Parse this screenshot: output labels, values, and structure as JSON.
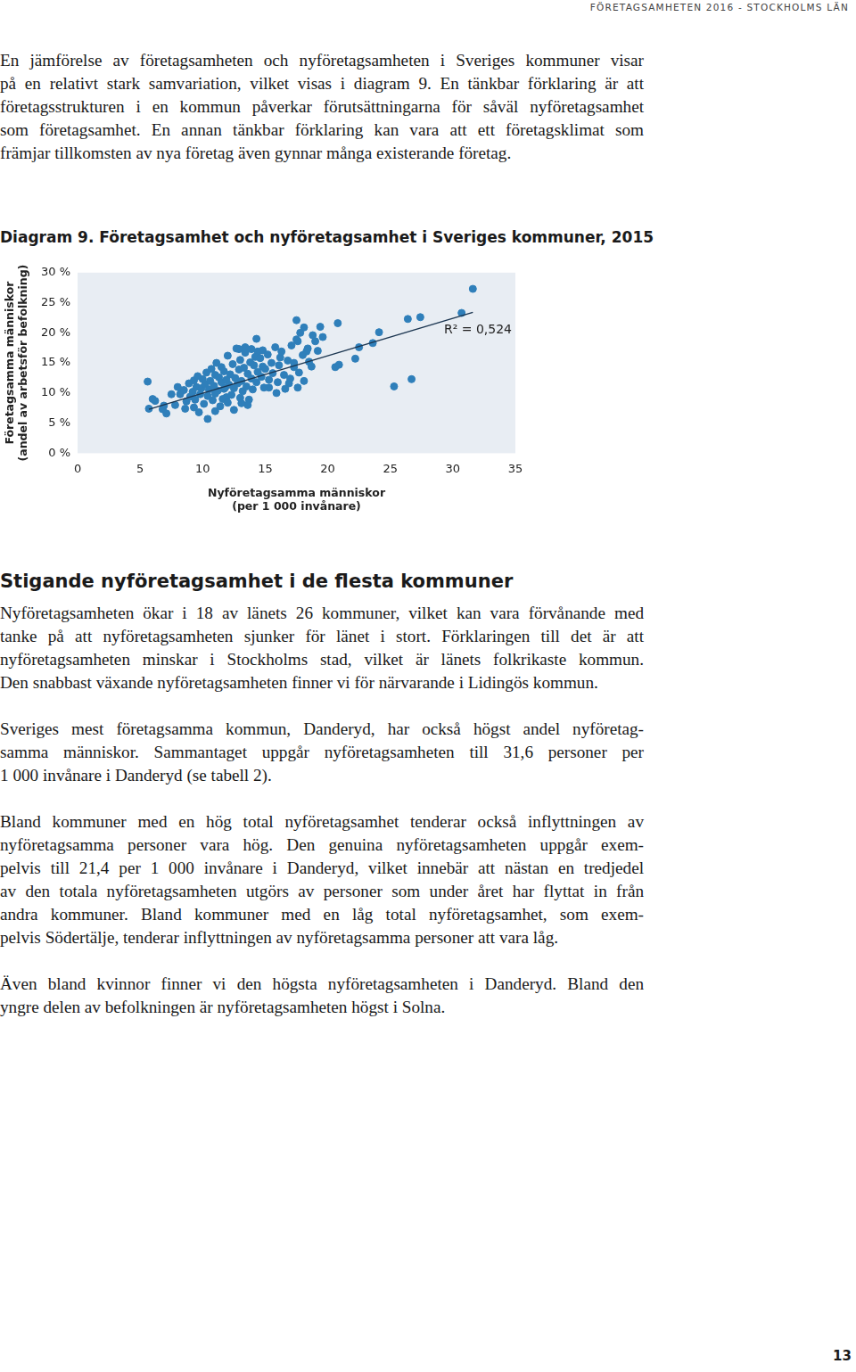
{
  "header": "FÖRETAGSAMHETEN 2016 - STOCKHOLMS LÄN",
  "intro": [
    [
      "En jämförelse av företagsamheten och nyföretagsamheten i Sveriges kommuner visar",
      "på en relativt stark samvariation, vilket visas i diagram 9. En tänkbar förklaring är att",
      "företagsstrukturen i en kommun påverkar förutsättningarna för såväl nyföretagsamhet",
      "som företagsamhet. En annan tänkbar förklaring kan vara att ett företagsklimat som",
      "främjar tillkomsten av nya företag även gynnar många existerande företag."
    ]
  ],
  "chart_data": {
    "type": "scatter",
    "title": "Diagram 9. Företagsamhet och nyföretagsamhet i Sveriges kommuner, 2015",
    "x_label": [
      "Nyföretagsamma människor",
      "(per 1 000 invånare)"
    ],
    "y_label": [
      "Företagsamma människor",
      "(andel av arbetsför befolkning)"
    ],
    "color": "#2f7fba",
    "grid": false,
    "xlim": [
      0,
      35
    ],
    "xticks": [
      0,
      5,
      10,
      15,
      20,
      25,
      30,
      35
    ],
    "ylim": [
      0,
      30
    ],
    "yticks": [
      {
        "value": 0,
        "label": "0 %"
      },
      {
        "value": 5,
        "label": "5 %"
      },
      {
        "value": 10,
        "label": "10 %"
      },
      {
        "value": 15,
        "label": "15 %"
      },
      {
        "value": 20,
        "label": "20 %"
      },
      {
        "value": 25,
        "label": "25 %"
      },
      {
        "value": 30,
        "label": "30 %"
      }
    ],
    "annotation": "R² = 0,524",
    "trend_line": {
      "color": "#1b3550",
      "x": [
        5.7,
        31.6
      ],
      "values": [
        7.3,
        23.4
      ]
    },
    "points": [
      [
        5.6,
        11.9
      ],
      [
        5.7,
        7.4
      ],
      [
        6.2,
        8.7
      ],
      [
        6.8,
        7.3
      ],
      [
        7.1,
        6.6
      ],
      [
        6.9,
        7.9
      ],
      [
        8.3,
        10.4
      ],
      [
        10.4,
        5.7
      ],
      [
        14.3,
        19.0
      ],
      [
        18.1,
        20.9
      ],
      [
        20.8,
        21.6
      ],
      [
        26.4,
        22.3
      ],
      [
        27.4,
        22.6
      ],
      [
        31.6,
        27.3
      ],
      [
        30.7,
        23.3
      ],
      [
        25.3,
        11.1
      ],
      [
        26.7,
        12.3
      ],
      [
        24.1,
        20.1
      ],
      [
        23.6,
        18.3
      ],
      [
        22.5,
        17.6
      ],
      [
        22.2,
        15.7
      ],
      [
        20.9,
        14.7
      ],
      [
        20.6,
        14.3
      ],
      [
        19.6,
        19.3
      ],
      [
        19.0,
        18.6
      ],
      [
        18.7,
        14.4
      ],
      [
        18.3,
        16.9
      ],
      [
        17.6,
        18.6
      ],
      [
        17.5,
        22.1
      ],
      [
        17.3,
        14.3
      ],
      [
        17.6,
        10.9
      ],
      [
        16.9,
        11.6
      ],
      [
        16.2,
        15.9
      ],
      [
        15.9,
        10.0
      ],
      [
        15.3,
        10.9
      ],
      [
        14.8,
        14.4
      ],
      [
        14.4,
        16.9
      ],
      [
        13.9,
        17.3
      ],
      [
        13.4,
        17.6
      ],
      [
        12.9,
        17.3
      ],
      [
        13.1,
        8.3
      ],
      [
        11.9,
        9.3
      ],
      [
        11.7,
        10.7
      ],
      [
        8.0,
        11.0
      ],
      [
        8.2,
        9.8
      ],
      [
        8.5,
        10.5
      ],
      [
        8.7,
        8.6
      ],
      [
        8.9,
        11.6
      ],
      [
        9.0,
        9.4
      ],
      [
        9.2,
        10.2
      ],
      [
        9.3,
        12.1
      ],
      [
        9.4,
        8.9
      ],
      [
        9.5,
        11.0
      ],
      [
        9.6,
        12.8
      ],
      [
        9.8,
        9.8
      ],
      [
        9.9,
        10.8
      ],
      [
        10.0,
        12.3
      ],
      [
        10.1,
        8.2
      ],
      [
        10.2,
        11.5
      ],
      [
        10.3,
        13.4
      ],
      [
        10.4,
        9.5
      ],
      [
        10.5,
        10.6
      ],
      [
        10.6,
        12.0
      ],
      [
        10.7,
        14.0
      ],
      [
        10.8,
        8.8
      ],
      [
        10.9,
        11.2
      ],
      [
        11.0,
        13.0
      ],
      [
        11.0,
        9.9
      ],
      [
        11.1,
        15.0
      ],
      [
        11.2,
        10.4
      ],
      [
        11.3,
        12.6
      ],
      [
        11.4,
        7.8
      ],
      [
        11.5,
        11.8
      ],
      [
        11.5,
        14.3
      ],
      [
        11.6,
        9.0
      ],
      [
        11.7,
        13.6
      ],
      [
        11.8,
        10.9
      ],
      [
        11.9,
        12.2
      ],
      [
        12.0,
        16.2
      ],
      [
        12.0,
        8.4
      ],
      [
        12.1,
        11.4
      ],
      [
        12.2,
        13.1
      ],
      [
        12.3,
        9.7
      ],
      [
        12.4,
        14.8
      ],
      [
        12.5,
        10.8
      ],
      [
        12.6,
        12.5
      ],
      [
        12.7,
        17.4
      ],
      [
        12.8,
        11.6
      ],
      [
        12.9,
        13.9
      ],
      [
        13.0,
        9.2
      ],
      [
        13.0,
        15.5
      ],
      [
        13.1,
        12.0
      ],
      [
        13.2,
        10.3
      ],
      [
        13.3,
        14.2
      ],
      [
        13.4,
        16.7
      ],
      [
        13.5,
        11.1
      ],
      [
        13.6,
        13.2
      ],
      [
        13.7,
        8.9
      ],
      [
        13.8,
        15.1
      ],
      [
        13.9,
        12.4
      ],
      [
        14.0,
        10.6
      ],
      [
        14.1,
        14.6
      ],
      [
        14.2,
        16.0
      ],
      [
        14.3,
        11.8
      ],
      [
        14.4,
        13.5
      ],
      [
        14.6,
        15.8
      ],
      [
        14.7,
        12.7
      ],
      [
        14.8,
        17.1
      ],
      [
        14.9,
        10.9
      ],
      [
        15.0,
        14.0
      ],
      [
        15.2,
        16.4
      ],
      [
        15.3,
        12.2
      ],
      [
        15.5,
        15.0
      ],
      [
        15.6,
        13.3
      ],
      [
        15.8,
        17.6
      ],
      [
        16.0,
        11.8
      ],
      [
        16.1,
        14.6
      ],
      [
        16.3,
        16.9
      ],
      [
        16.5,
        13.0
      ],
      [
        16.6,
        10.7
      ],
      [
        16.8,
        15.4
      ],
      [
        17.0,
        12.4
      ],
      [
        17.1,
        17.9
      ],
      [
        17.3,
        15.0
      ],
      [
        17.5,
        18.9
      ],
      [
        17.7,
        13.4
      ],
      [
        17.8,
        20.0
      ],
      [
        18.0,
        16.3
      ],
      [
        18.1,
        12.0
      ],
      [
        18.4,
        17.4
      ],
      [
        18.5,
        15.2
      ],
      [
        18.8,
        19.6
      ],
      [
        19.2,
        17.0
      ],
      [
        19.4,
        21.0
      ],
      [
        6.0,
        9.0
      ],
      [
        7.5,
        9.8
      ],
      [
        7.8,
        8.0
      ],
      [
        9.7,
        6.8
      ],
      [
        11.0,
        7.0
      ],
      [
        12.5,
        7.2
      ],
      [
        13.6,
        8.0
      ],
      [
        8.6,
        7.4
      ],
      [
        9.3,
        7.6
      ]
    ]
  },
  "section_heading": "Stigande nyföretagsamhet i de flesta kommuner",
  "body": [
    [
      "Nyföretagsamheten ökar i 18 av länets 26 kommuner, vilket kan vara förvånande med",
      "tanke på att nyföretagsamheten sjunker för länet i stort. Förklaringen till det är att",
      "nyföretagsamheten minskar i Stockholms stad, vilket är länets folkrikaste kommun.",
      "Den snabbast växande nyföretagsamheten finner vi för närvarande i Lidingös kommun."
    ],
    [
      "Sveriges mest företagsamma kommun, Danderyd, har också högst andel nyföretag-",
      "samma människor. Sammantaget uppgår nyföretagsamheten till 31,6 personer per",
      "1 000 invånare i Danderyd (se tabell 2)."
    ],
    [
      "Bland kommuner med en hög total nyföretagsamhet tenderar också inflyttningen av",
      "nyföretagsamma personer vara hög. Den genuina nyföretagsamheten uppgår exem-",
      "pelvis till 21,4 per 1 000 invånare i Danderyd, vilket innebär att nästan en tredjedel",
      "av den totala nyföretagsamheten utgörs av personer som under året har flyttat in från",
      "andra kommuner. Bland kommuner med en låg total nyföretagsamhet, som exem-",
      "pelvis Södertälje, tenderar inflyttningen av nyföretagsamma personer att vara låg."
    ],
    [
      "Även bland kvinnor finner vi den högsta nyföretagsamheten i Danderyd. Bland den",
      "yngre delen av befolkningen är nyföretagsamheten högst i Solna."
    ]
  ],
  "page_number": "13"
}
